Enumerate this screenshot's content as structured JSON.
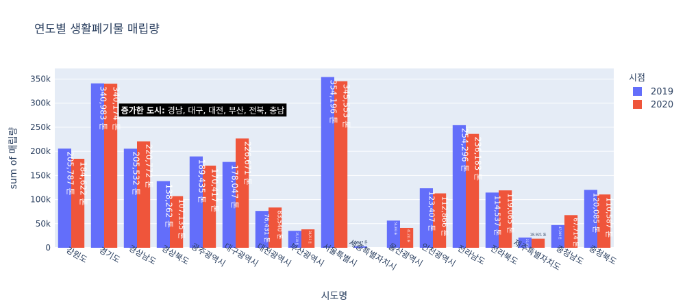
{
  "chart_data": {
    "type": "bar",
    "title": "연도별 생활폐기물 매립량",
    "xlabel": "시도명",
    "ylabel": "sum of 매립량",
    "ylim": [
      0,
      372000
    ],
    "yticks": [
      0,
      50000,
      100000,
      150000,
      200000,
      250000,
      300000,
      350000
    ],
    "ytick_labels": [
      "0",
      "50k",
      "100k",
      "150k",
      "200k",
      "250k",
      "300k",
      "350k"
    ],
    "categories": [
      "강원도",
      "경기도",
      "경상남도",
      "경상북도",
      "광주광역시",
      "대구광역시",
      "대전광역시",
      "부산광역시",
      "서울특별시",
      "세종특별자치시",
      "울산광역시",
      "인천광역시",
      "전라남도",
      "전라북도",
      "제주특별자치도",
      "충청남도",
      "충청북도"
    ],
    "legend_title": "시점",
    "legend_position": "top-right",
    "grid": true,
    "series": [
      {
        "name": "2019",
        "color": "#636efa",
        "values": [
          205787,
          340983,
          205532,
          138262,
          189435,
          178047,
          76431,
          35119,
          354196,
          2947,
          56393,
          123407,
          254296,
          114537,
          21094,
          47049,
          120085
        ],
        "labels": [
          "205,787 톤",
          "340,983 톤",
          "205,532 톤",
          "138,262 톤",
          "189,435 톤",
          "178,047 톤",
          "76,431 톤",
          "35,119 톤",
          "354,196 톤",
          "2,947 톤",
          "56,393 톤",
          "123,407 톤",
          "254,296 톤",
          "114,537 톤",
          "21,094 톤",
          "47,049 톤",
          "120,085 톤"
        ]
      },
      {
        "name": "2020",
        "color": "#ef553b",
        "values": [
          184622,
          340174,
          220772,
          107135,
          170417,
          226671,
          83540,
          38211,
          345553,
          0,
          41211,
          112866,
          236183,
          119065,
          18921,
          67714,
          110587
        ],
        "labels": [
          "184,622 톤",
          "340,174 톤",
          "220,772 톤",
          "107,135 톤",
          "170,417 톤",
          "226,671 톤",
          "83,540 톤",
          "38,211 톤",
          "345,553 톤",
          "",
          "41,211 톤",
          "112,866 톤",
          "236,183 톤",
          "119,065 톤",
          "18,921 톤",
          "67,714 톤",
          "110,587 톤"
        ]
      }
    ],
    "annotation": {
      "bold": "증가한 도시:",
      "text": " 경남, 대구, 대전, 부산, 전북, 충남",
      "x_category": "광주광역시",
      "y": 285000
    }
  }
}
